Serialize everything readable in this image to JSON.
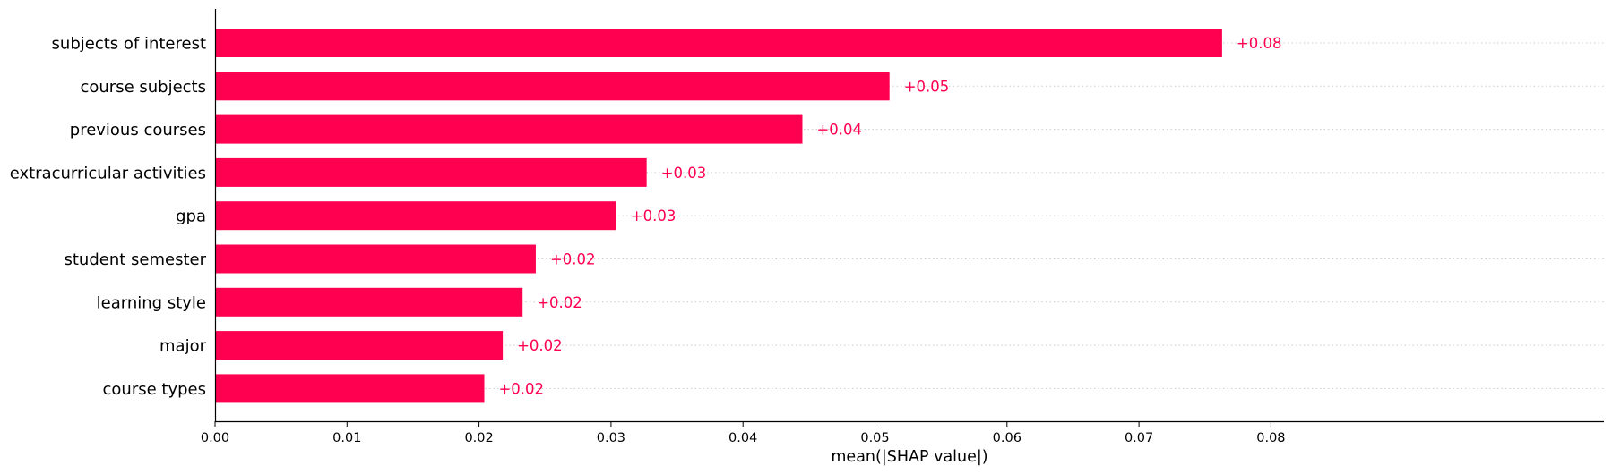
{
  "chart_data": {
    "type": "bar",
    "orientation": "horizontal",
    "xlabel": "mean(|SHAP value|)",
    "ylabel": "",
    "xlim": [
      0.0,
      0.084
    ],
    "xticks": [
      "0.00",
      "0.01",
      "0.02",
      "0.03",
      "0.04",
      "0.05",
      "0.06",
      "0.07",
      "0.08"
    ],
    "grid": "dotted row guides",
    "bar_color": "#ff0051",
    "categories": [
      "subjects of interest",
      "course subjects",
      "previous courses",
      "extracurricular activities",
      "gpa",
      "student semester",
      "learning style",
      "major",
      "course types"
    ],
    "values": [
      0.0763,
      0.0511,
      0.0445,
      0.0327,
      0.0304,
      0.0243,
      0.0233,
      0.0218,
      0.0204
    ],
    "data_labels": [
      "+0.08",
      "+0.05",
      "+0.04",
      "+0.03",
      "+0.03",
      "+0.02",
      "+0.02",
      "+0.02",
      "+0.02"
    ]
  }
}
